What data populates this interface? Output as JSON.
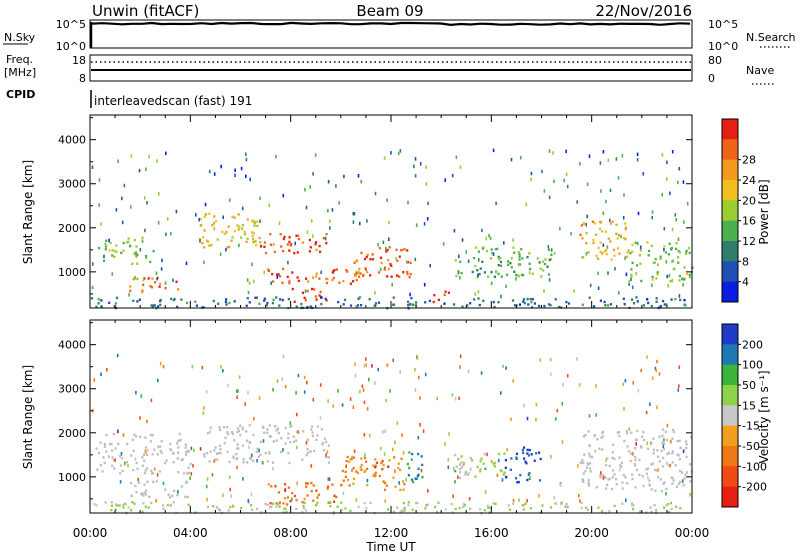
{
  "header": {
    "station": "Unwin (fitACF)",
    "beam": "Beam 09",
    "date": "22/Nov/2016"
  },
  "nsky_panel": {
    "left_label": "N.Sky",
    "left_ticks": [
      "10^5",
      "10^0"
    ],
    "right_ticks": [
      "10^5",
      "10^0"
    ],
    "right_label": "N.Search"
  },
  "freq_panel": {
    "left_label_1": "Freq.",
    "left_label_2": "[MHz]",
    "left_ticks": [
      "18",
      "8"
    ],
    "right_ticks": [
      "80",
      "0"
    ],
    "right_label": "Nave"
  },
  "cpid": {
    "label": "CPID",
    "value": "interleavedscan (fast) 191"
  },
  "colors": {
    "frame": "#000000",
    "background": "#ffffff",
    "ground_scatter": "#bebebe"
  },
  "chart_data": [
    {
      "type": "heatmap",
      "name": "power",
      "ylabel": "Slant Range [km]",
      "xlabel": "",
      "x_ticks": [
        "00:00",
        "04:00",
        "08:00",
        "12:00",
        "16:00",
        "20:00",
        "00:00"
      ],
      "xlim_hours": [
        0,
        24
      ],
      "y_ticks": [
        1000,
        2000,
        3000,
        4000
      ],
      "ylim_km": [
        180,
        4560
      ],
      "colorbar": {
        "label": "Power [dB]",
        "ticks": [
          "4",
          "8",
          "12",
          "16",
          "20",
          "24",
          "28"
        ],
        "range": [
          0,
          30
        ],
        "colors": [
          "#0a1ee0",
          "#1e50b4",
          "#2e7d6e",
          "#4caf50",
          "#9acd32",
          "#f0c020",
          "#f59a1e",
          "#f06418",
          "#e61e14"
        ]
      },
      "regions": [
        {
          "t0": 0.3,
          "t1": 2.5,
          "r0": 1200,
          "r1": 1800,
          "value": 14
        },
        {
          "t0": 1.5,
          "t1": 3.5,
          "r0": 550,
          "r1": 900,
          "value": 24
        },
        {
          "t0": 4.3,
          "t1": 7.0,
          "r0": 1550,
          "r1": 2350,
          "value": 18
        },
        {
          "t0": 6.5,
          "t1": 9.5,
          "r0": 1450,
          "r1": 1900,
          "value": 27
        },
        {
          "t0": 7.0,
          "t1": 11.0,
          "r0": 700,
          "r1": 1100,
          "value": 25
        },
        {
          "t0": 8.0,
          "t1": 9.5,
          "r0": 300,
          "r1": 650,
          "value": 28
        },
        {
          "t0": 10.5,
          "t1": 13.0,
          "r0": 900,
          "r1": 1600,
          "value": 26
        },
        {
          "t0": 13.5,
          "t1": 14.3,
          "r0": 300,
          "r1": 600,
          "value": 29
        },
        {
          "t0": 14.5,
          "t1": 18.5,
          "r0": 900,
          "r1": 1600,
          "value": 12
        },
        {
          "t0": 19.5,
          "t1": 21.5,
          "r0": 1300,
          "r1": 2200,
          "value": 20
        },
        {
          "t0": 21.5,
          "t1": 24.0,
          "r0": 800,
          "r1": 1700,
          "value": 14
        },
        {
          "t0": 0.0,
          "t1": 24.0,
          "r0": 200,
          "r1": 450,
          "value": 7
        }
      ]
    },
    {
      "type": "heatmap",
      "name": "velocity",
      "ylabel": "Slant Range [km]",
      "xlabel": "Time UT",
      "x_ticks": [
        "00:00",
        "04:00",
        "08:00",
        "12:00",
        "16:00",
        "20:00",
        "00:00"
      ],
      "xlim_hours": [
        0,
        24
      ],
      "y_ticks": [
        1000,
        2000,
        3000,
        4000
      ],
      "ylim_km": [
        180,
        4560
      ],
      "colorbar": {
        "label": "Velocity [m s⁻¹]",
        "ticks": [
          "200",
          "100",
          "50",
          "15",
          "-15",
          "-50",
          "-100",
          "-200"
        ],
        "range": [
          -250,
          250
        ],
        "colors": [
          "#1e3cc8",
          "#1e78b4",
          "#3cb43c",
          "#8cd24b",
          "#c8c8c8",
          "#f0a01e",
          "#f07814",
          "#f04b14",
          "#e61e14"
        ]
      },
      "regions": [
        {
          "t0": 0.2,
          "t1": 4.0,
          "r0": 1100,
          "r1": 2000,
          "value": 0
        },
        {
          "t0": 1.5,
          "t1": 4.0,
          "r0": 550,
          "r1": 950,
          "value": 0
        },
        {
          "t0": 4.5,
          "t1": 9.5,
          "r0": 1300,
          "r1": 2200,
          "value": 0
        },
        {
          "t0": 7.0,
          "t1": 10.0,
          "r0": 400,
          "r1": 900,
          "value": -120
        },
        {
          "t0": 10.0,
          "t1": 12.5,
          "r0": 700,
          "r1": 1500,
          "value": -80
        },
        {
          "t0": 11.0,
          "t1": 12.0,
          "r0": 1200,
          "r1": 1400,
          "value": -200
        },
        {
          "t0": 12.5,
          "t1": 13.3,
          "r0": 900,
          "r1": 1700,
          "value": 150
        },
        {
          "t0": 14.5,
          "t1": 16.5,
          "r0": 1000,
          "r1": 1600,
          "value": 40
        },
        {
          "t0": 16.5,
          "t1": 18.0,
          "r0": 900,
          "r1": 1700,
          "value": 200
        },
        {
          "t0": 19.5,
          "t1": 24.0,
          "r0": 700,
          "r1": 2100,
          "value": 0
        },
        {
          "t0": 0.0,
          "t1": 24.0,
          "r0": 200,
          "r1": 450,
          "value": 30
        }
      ]
    }
  ]
}
